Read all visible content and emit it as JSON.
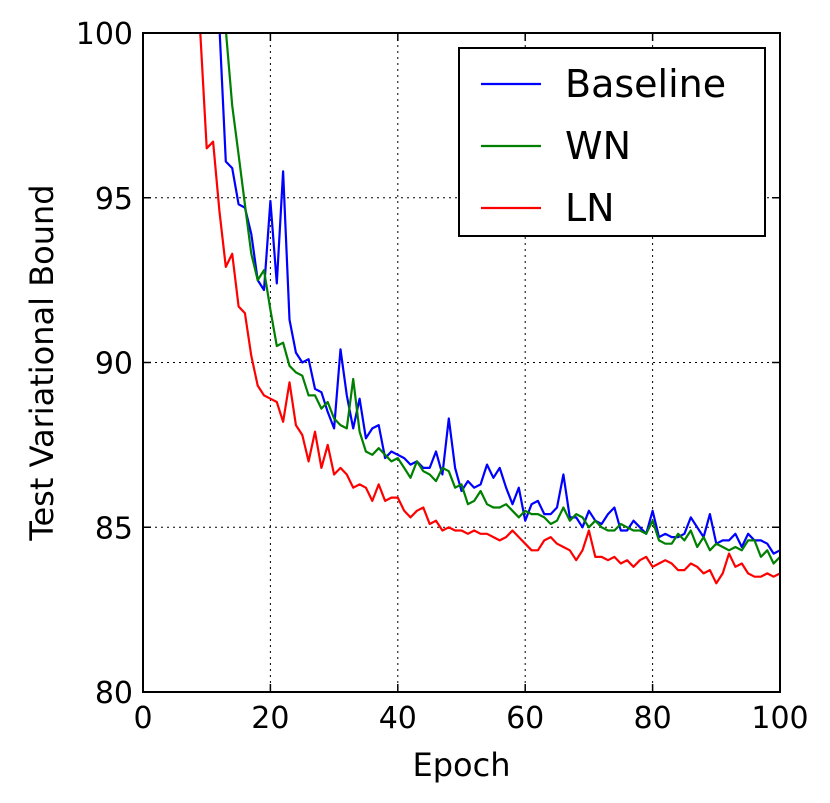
{
  "chart_data": {
    "type": "line",
    "title": "",
    "xlabel": "Epoch",
    "ylabel": "Test Variational Bound",
    "xlim": [
      0,
      100
    ],
    "ylim": [
      80,
      100
    ],
    "xticks": [
      0,
      20,
      40,
      60,
      80,
      100
    ],
    "yticks": [
      80,
      85,
      90,
      95,
      100
    ],
    "xtick_labels": [
      "0",
      "20",
      "40",
      "60",
      "80",
      "100"
    ],
    "ytick_labels": [
      "80",
      "85",
      "90",
      "95",
      "100"
    ],
    "grid": true,
    "legend_position": "top-right",
    "series": [
      {
        "name": "Baseline",
        "color": "#0000ff",
        "x": [
          12,
          13,
          14,
          15,
          16,
          17,
          18,
          19,
          20,
          21,
          22,
          23,
          24,
          25,
          26,
          27,
          28,
          29,
          30,
          31,
          32,
          33,
          34,
          35,
          36,
          37,
          38,
          39,
          40,
          41,
          42,
          43,
          44,
          45,
          46,
          47,
          48,
          49,
          50,
          51,
          52,
          53,
          54,
          55,
          56,
          57,
          58,
          59,
          60,
          61,
          62,
          63,
          64,
          65,
          66,
          67,
          68,
          69,
          70,
          71,
          72,
          73,
          74,
          75,
          76,
          77,
          78,
          79,
          80,
          81,
          82,
          83,
          84,
          85,
          86,
          87,
          88,
          89,
          90,
          91,
          92,
          93,
          94,
          95,
          96,
          97,
          98,
          99,
          100
        ],
        "values": [
          100.2,
          96.1,
          95.9,
          94.8,
          94.7,
          93.9,
          92.5,
          92.2,
          94.9,
          92.4,
          95.8,
          91.3,
          90.3,
          90.0,
          90.1,
          89.2,
          89.1,
          88.5,
          88.0,
          90.4,
          89.0,
          88.0,
          88.9,
          87.7,
          88.0,
          88.1,
          87.1,
          87.3,
          87.2,
          87.1,
          86.9,
          87.0,
          86.8,
          86.8,
          87.3,
          86.6,
          88.3,
          86.8,
          86.1,
          86.4,
          86.2,
          86.3,
          86.9,
          86.5,
          86.8,
          86.2,
          85.7,
          86.2,
          85.2,
          85.7,
          85.8,
          85.4,
          85.4,
          85.6,
          86.6,
          85.3,
          85.3,
          85.0,
          85.5,
          85.2,
          85.1,
          85.4,
          85.6,
          84.9,
          84.9,
          85.2,
          85.0,
          84.8,
          85.5,
          84.7,
          84.8,
          84.7,
          84.7,
          84.8,
          85.3,
          85.0,
          84.7,
          85.4,
          84.5,
          84.6,
          84.6,
          84.8,
          84.4,
          84.8,
          84.6,
          84.6,
          84.5,
          84.2,
          84.3
        ]
      },
      {
        "name": "WN",
        "color": "#008000",
        "x": [
          13,
          14,
          15,
          16,
          17,
          18,
          19,
          20,
          21,
          22,
          23,
          24,
          25,
          26,
          27,
          28,
          29,
          30,
          31,
          32,
          33,
          34,
          35,
          36,
          37,
          38,
          39,
          40,
          41,
          42,
          43,
          44,
          45,
          46,
          47,
          48,
          49,
          50,
          51,
          52,
          53,
          54,
          55,
          56,
          57,
          58,
          59,
          60,
          61,
          62,
          63,
          64,
          65,
          66,
          67,
          68,
          69,
          70,
          71,
          72,
          73,
          74,
          75,
          76,
          77,
          78,
          79,
          80,
          81,
          82,
          83,
          84,
          85,
          86,
          87,
          88,
          89,
          90,
          91,
          92,
          93,
          94,
          95,
          96,
          97,
          98,
          99,
          100
        ],
        "values": [
          100.1,
          97.8,
          96.3,
          94.8,
          93.3,
          92.5,
          92.8,
          91.6,
          90.5,
          90.6,
          89.9,
          89.7,
          89.6,
          89.0,
          89.0,
          88.6,
          88.8,
          88.3,
          88.1,
          88.0,
          89.5,
          87.9,
          87.3,
          87.2,
          87.4,
          87.2,
          87.0,
          87.1,
          86.8,
          86.5,
          87.0,
          86.7,
          86.6,
          86.4,
          86.8,
          86.7,
          86.2,
          86.3,
          85.7,
          85.8,
          86.1,
          85.7,
          85.6,
          85.6,
          85.7,
          85.5,
          85.3,
          85.5,
          85.4,
          85.4,
          85.3,
          85.1,
          85.2,
          85.6,
          85.2,
          85.4,
          85.3,
          85.0,
          85.2,
          85.0,
          84.9,
          84.9,
          85.1,
          85.0,
          84.9,
          84.9,
          84.8,
          85.2,
          84.6,
          84.5,
          84.5,
          84.8,
          84.6,
          84.9,
          84.4,
          84.7,
          84.3,
          84.5,
          84.4,
          84.3,
          84.4,
          84.3,
          84.6,
          84.6,
          84.1,
          84.3,
          83.9,
          84.1
        ]
      },
      {
        "name": "LN",
        "color": "#ff0000",
        "x": [
          9,
          10,
          11,
          12,
          13,
          14,
          15,
          16,
          17,
          18,
          19,
          20,
          21,
          22,
          23,
          24,
          25,
          26,
          27,
          28,
          29,
          30,
          31,
          32,
          33,
          34,
          35,
          36,
          37,
          38,
          39,
          40,
          41,
          42,
          43,
          44,
          45,
          46,
          47,
          48,
          49,
          50,
          51,
          52,
          53,
          54,
          55,
          56,
          57,
          58,
          59,
          60,
          61,
          62,
          63,
          64,
          65,
          66,
          67,
          68,
          69,
          70,
          71,
          72,
          73,
          74,
          75,
          76,
          77,
          78,
          79,
          80,
          81,
          82,
          83,
          84,
          85,
          86,
          87,
          88,
          89,
          90,
          91,
          92,
          93,
          94,
          95,
          96,
          97,
          98,
          99,
          100
        ],
        "values": [
          100.0,
          96.5,
          96.7,
          94.6,
          92.9,
          93.3,
          91.7,
          91.5,
          90.2,
          89.3,
          89.0,
          88.9,
          88.8,
          88.2,
          89.4,
          88.1,
          87.8,
          87.0,
          87.9,
          86.8,
          87.5,
          86.6,
          86.8,
          86.6,
          86.2,
          86.3,
          86.2,
          85.8,
          86.3,
          85.8,
          85.9,
          85.9,
          85.5,
          85.3,
          85.5,
          85.6,
          85.1,
          85.2,
          84.9,
          85.0,
          84.9,
          84.9,
          84.8,
          84.9,
          84.8,
          84.8,
          84.7,
          84.6,
          84.7,
          84.9,
          84.7,
          84.5,
          84.3,
          84.3,
          84.6,
          84.7,
          84.5,
          84.4,
          84.3,
          84.0,
          84.3,
          84.9,
          84.1,
          84.1,
          84.0,
          84.1,
          83.9,
          84.0,
          83.8,
          84.0,
          84.1,
          83.8,
          83.9,
          84.0,
          83.9,
          83.7,
          83.7,
          83.9,
          83.8,
          83.6,
          83.7,
          83.3,
          83.6,
          84.2,
          83.8,
          83.9,
          83.6,
          83.5,
          83.5,
          83.6,
          83.5,
          83.6
        ]
      }
    ]
  }
}
